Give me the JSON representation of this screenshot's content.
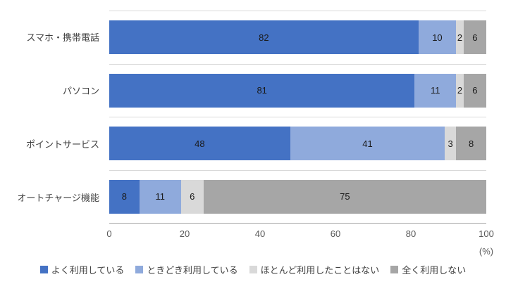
{
  "chart_data": {
    "type": "bar",
    "orientation": "horizontal",
    "stacked": true,
    "categories": [
      "スマホ・携帯電話",
      "パソコン",
      "ポイントサービス",
      "オートチャージ機能"
    ],
    "series": [
      {
        "name": "よく利用している",
        "color": "#4472c4",
        "values": [
          82,
          81,
          48,
          8
        ]
      },
      {
        "name": "ときどき利用している",
        "color": "#8faadc",
        "values": [
          10,
          11,
          41,
          11
        ]
      },
      {
        "name": "ほとんど利用したことはない",
        "color": "#d9d9d9",
        "values": [
          2,
          2,
          3,
          6
        ]
      },
      {
        "name": "全く利用しない",
        "color": "#a6a6a6",
        "values": [
          6,
          6,
          8,
          75
        ]
      }
    ],
    "xlim": [
      0,
      100
    ],
    "x_ticks": [
      0,
      20,
      40,
      60,
      80,
      100
    ],
    "x_unit_label": "(%)",
    "legend_position": "bottom",
    "data_labels": true,
    "grid": false
  }
}
